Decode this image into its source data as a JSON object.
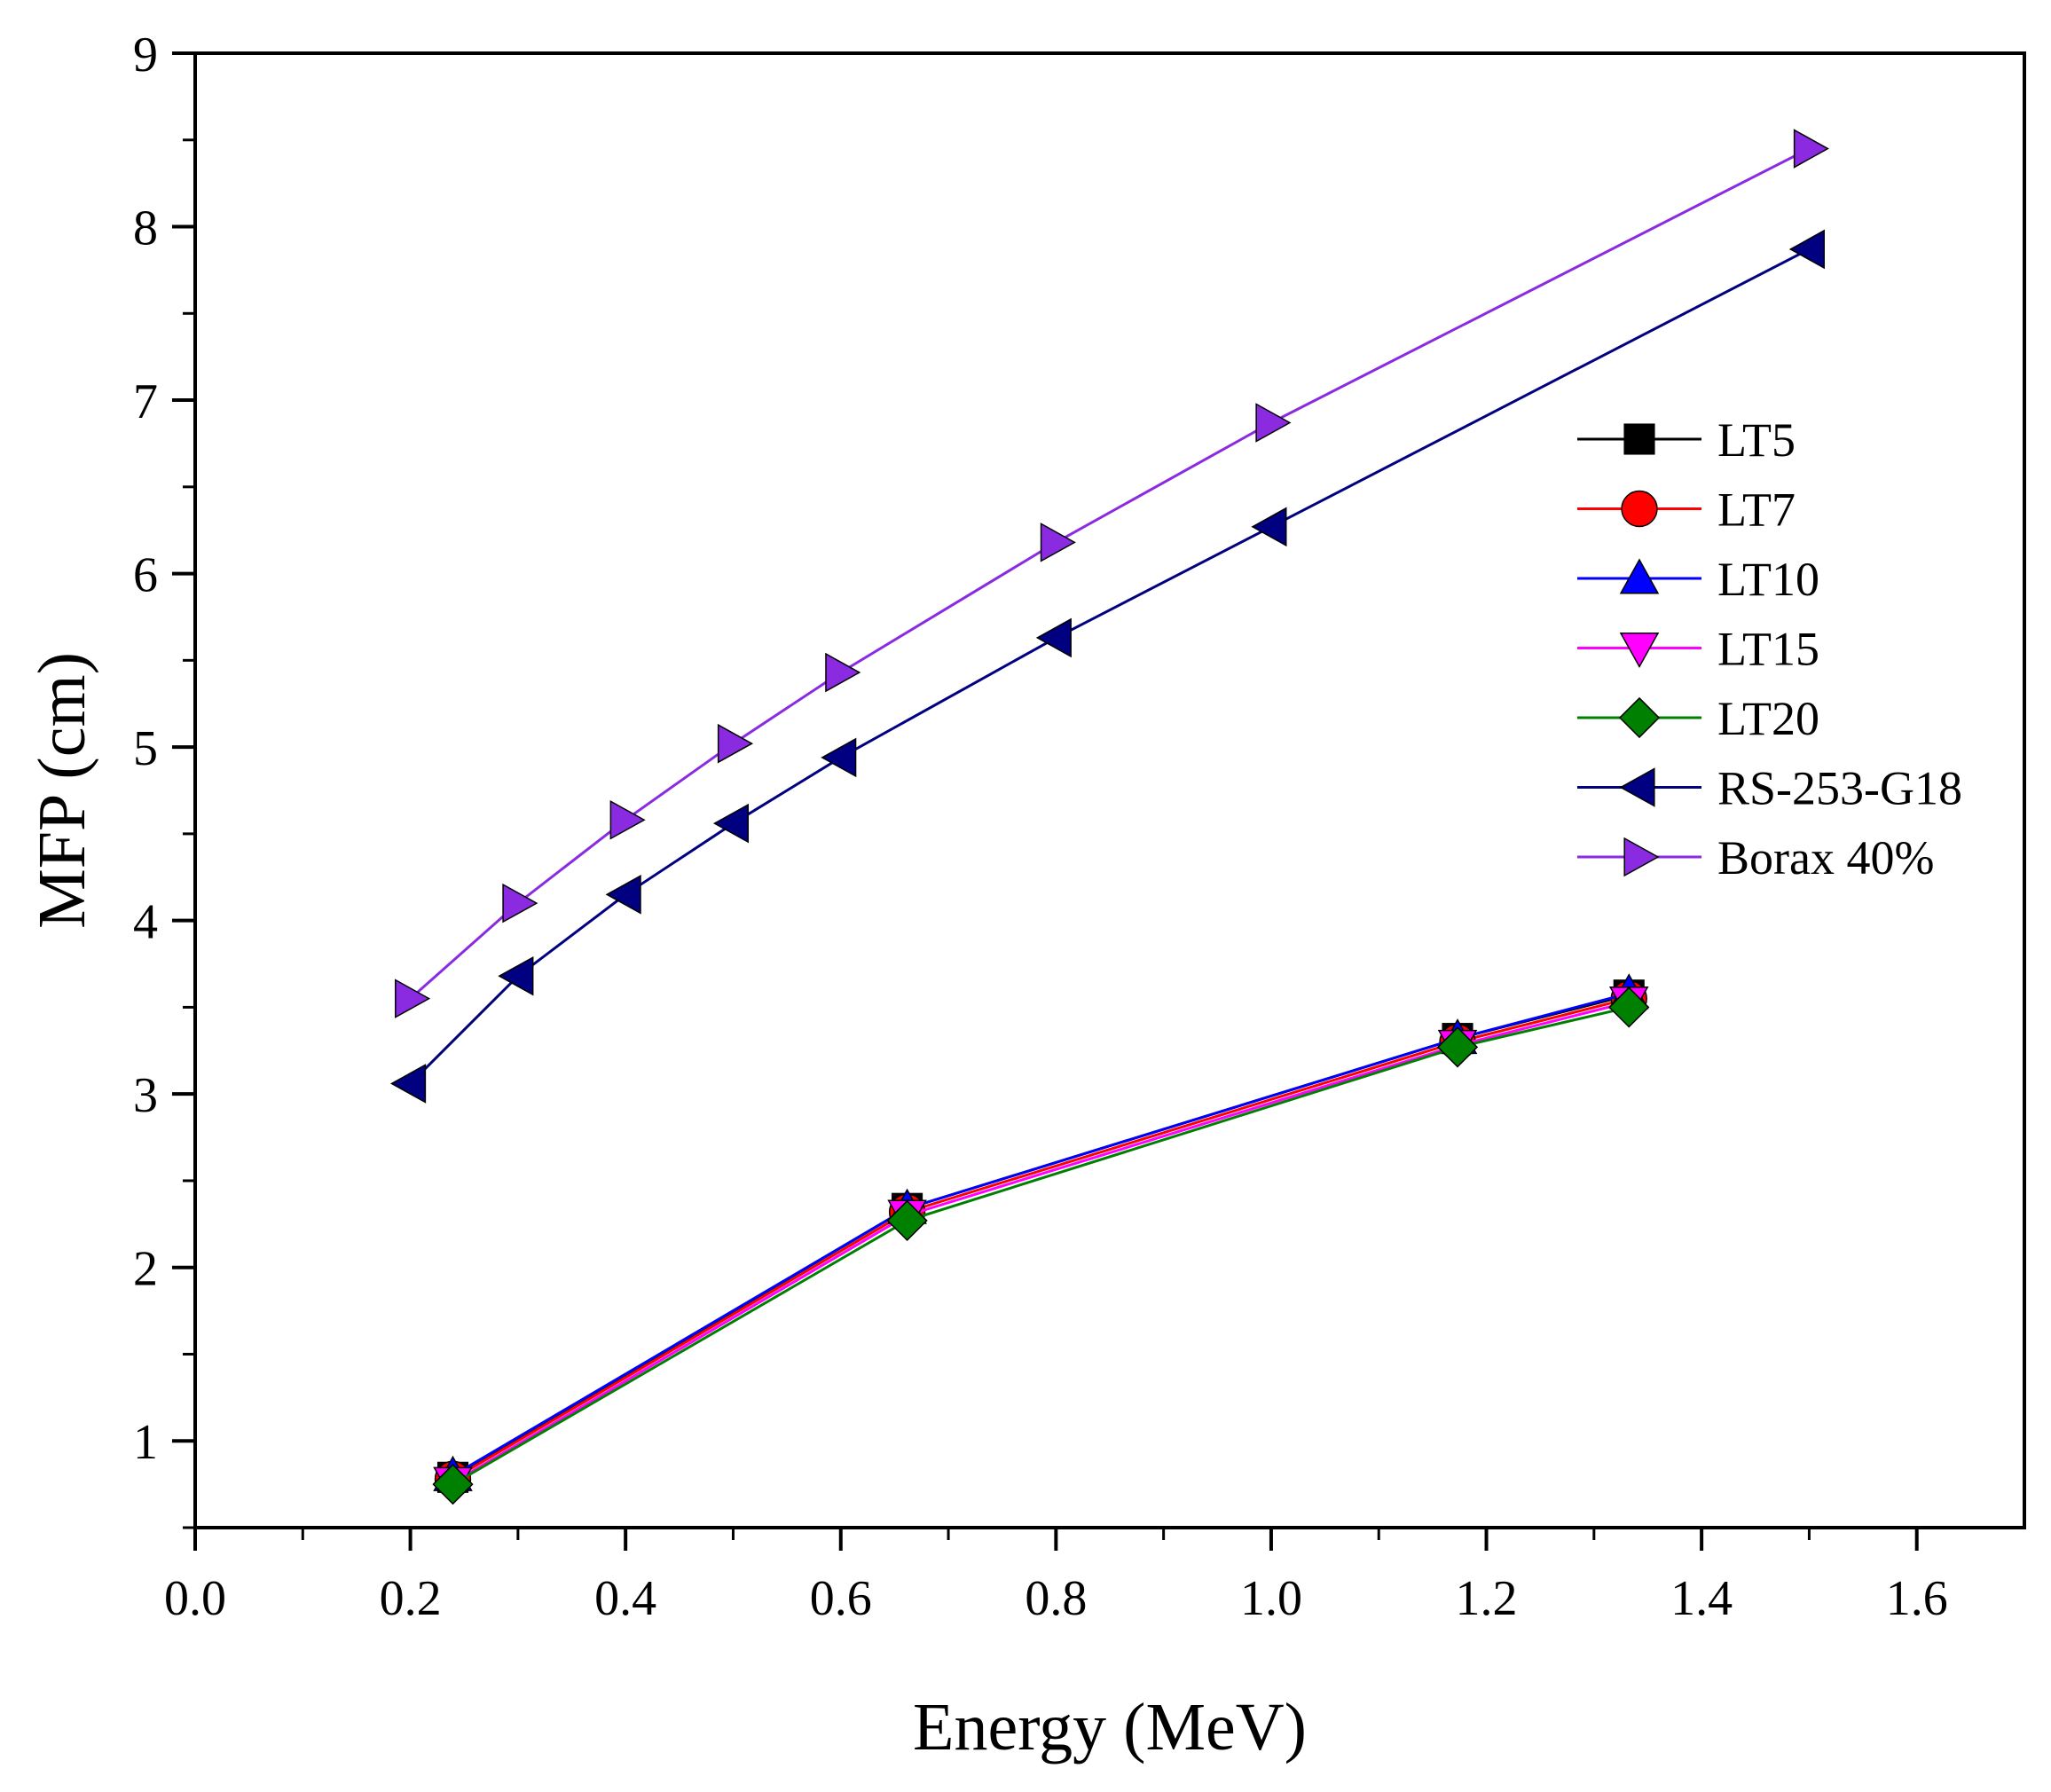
{
  "chart_data": {
    "type": "line",
    "title": "",
    "xlabel": "Energy (MeV)",
    "ylabel": "MFP (cm)",
    "xlim": [
      0.0,
      1.7
    ],
    "ylim": [
      0.5,
      9.0
    ],
    "x_ticks": [
      0.0,
      0.2,
      0.4,
      0.6,
      0.8,
      1.0,
      1.2,
      1.4,
      1.6
    ],
    "x_tick_labels": [
      "0.0",
      "0.2",
      "0.4",
      "0.6",
      "0.8",
      "1.0",
      "1.2",
      "1.4",
      "1.6"
    ],
    "y_ticks": [
      1,
      2,
      3,
      4,
      5,
      6,
      7,
      8,
      9
    ],
    "y_tick_labels": [
      "1",
      "2",
      "3",
      "4",
      "5",
      "6",
      "7",
      "8",
      "9"
    ],
    "grid": false,
    "legend_position": "right-middle",
    "series": [
      {
        "name": "LT5",
        "color": "#000000",
        "marker": "square",
        "x": [
          0.2395,
          0.6617,
          1.1732,
          1.3325
        ],
        "y": [
          0.79,
          2.34,
          3.32,
          3.57
        ]
      },
      {
        "name": "LT7",
        "color": "#ff0000",
        "marker": "circle",
        "x": [
          0.2395,
          0.6617,
          1.1732,
          1.3325
        ],
        "y": [
          0.78,
          2.32,
          3.3,
          3.55
        ]
      },
      {
        "name": "LT10",
        "color": "#0000ff",
        "marker": "triangle-up",
        "x": [
          0.2395,
          0.6617,
          1.1732,
          1.3325
        ],
        "y": [
          0.8,
          2.34,
          3.32,
          3.58
        ]
      },
      {
        "name": "LT15",
        "color": "#ff00ff",
        "marker": "triangle-down",
        "x": [
          0.2395,
          0.6617,
          1.1732,
          1.3325
        ],
        "y": [
          0.76,
          2.3,
          3.28,
          3.53
        ]
      },
      {
        "name": "LT20",
        "color": "#008000",
        "marker": "diamond",
        "x": [
          0.2395,
          0.6617,
          1.1732,
          1.3325
        ],
        "y": [
          0.75,
          2.27,
          3.27,
          3.5
        ]
      },
      {
        "name": "RS-253-G18",
        "color": "#000080",
        "marker": "triangle-left",
        "x": [
          0.2,
          0.3,
          0.4,
          0.5,
          0.6,
          0.8,
          1.0,
          1.5
        ],
        "y": [
          3.06,
          3.68,
          4.15,
          4.56,
          4.94,
          5.63,
          6.27,
          7.87
        ]
      },
      {
        "name": "Borax 40%",
        "color": "#8a2be2",
        "marker": "triangle-right",
        "x": [
          0.2,
          0.3,
          0.4,
          0.5,
          0.6,
          0.8,
          1.0,
          1.5
        ],
        "y": [
          3.55,
          4.1,
          4.58,
          5.02,
          5.43,
          6.18,
          6.87,
          8.45
        ]
      }
    ]
  }
}
